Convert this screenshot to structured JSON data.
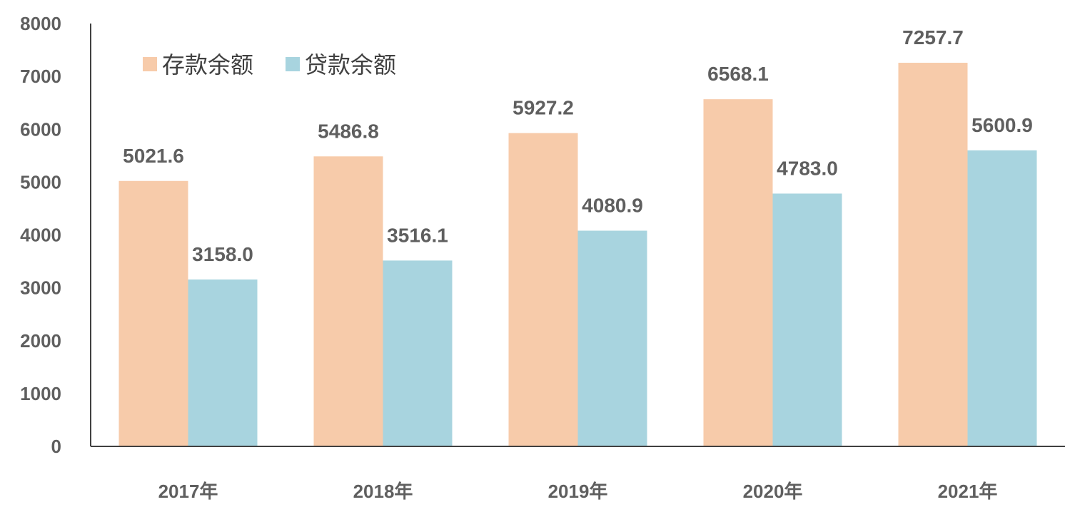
{
  "chart_data": {
    "type": "bar",
    "title": "",
    "xlabel": "",
    "ylabel": "",
    "categories": [
      "2017年",
      "2018年",
      "2019年",
      "2020年",
      "2021年"
    ],
    "series": [
      {
        "name": "存款余额",
        "color": "#f7cbaa",
        "values": [
          5021.6,
          5486.8,
          5927.2,
          6568.1,
          7257.7
        ],
        "labels": [
          "5021.6",
          "5486.8",
          "5927.2",
          "6568.1",
          "7257.7"
        ]
      },
      {
        "name": "贷款余额",
        "color": "#a8d4df",
        "values": [
          3158.0,
          3516.1,
          4080.9,
          4783.0,
          5600.9
        ],
        "labels": [
          "3158.0",
          "3516.1",
          "4080.9",
          "4783.0",
          "5600.9"
        ]
      }
    ],
    "ylim": [
      0,
      8000
    ],
    "yticks": [
      "0",
      "1000",
      "2000",
      "3000",
      "4000",
      "5000",
      "6000",
      "7000",
      "8000"
    ],
    "grid": false,
    "legend_position": "top-left"
  }
}
